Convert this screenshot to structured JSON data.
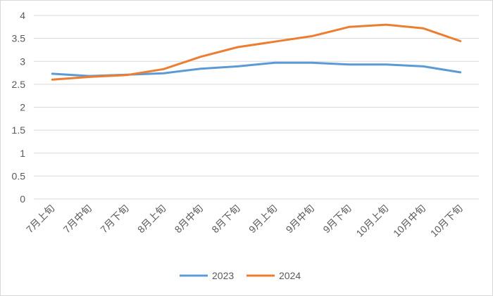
{
  "chart_data": {
    "type": "line",
    "title": "",
    "xlabel": "",
    "ylabel": "",
    "ylim": [
      0,
      4
    ],
    "yticks": [
      "0",
      "0.5",
      "1",
      "1.5",
      "2",
      "2.5",
      "3",
      "3.5",
      "4"
    ],
    "categories": [
      "7月上旬",
      "7月中旬",
      "7月下旬",
      "8月上旬",
      "8月中旬",
      "8月下旬",
      "9月上旬",
      "9月中旬",
      "9月下旬",
      "10月上旬",
      "10月中旬",
      "10月下旬"
    ],
    "grid": true,
    "legend_position": "bottom",
    "series": [
      {
        "name": "2023",
        "color": "#5B9BD5",
        "values": [
          2.73,
          2.68,
          2.71,
          2.74,
          2.84,
          2.89,
          2.97,
          2.97,
          2.93,
          2.93,
          2.89,
          2.76
        ]
      },
      {
        "name": "2024",
        "color": "#ED7D31",
        "values": [
          2.6,
          2.66,
          2.7,
          2.83,
          3.1,
          3.31,
          3.43,
          3.55,
          3.75,
          3.8,
          3.72,
          3.44
        ]
      }
    ]
  }
}
